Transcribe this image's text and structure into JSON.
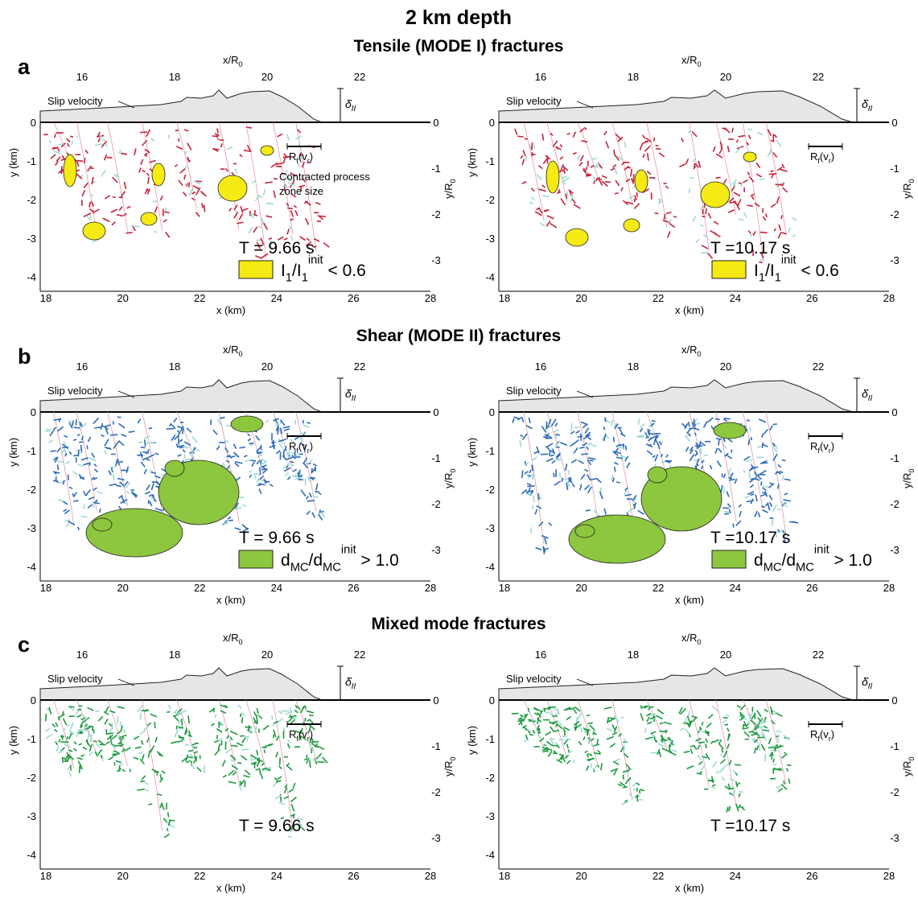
{
  "title": "2 km depth",
  "axes": {
    "x_label": "x (km)",
    "x_ticks": [
      "18",
      "20",
      "22",
      "24",
      "26",
      "28"
    ],
    "x2_label": {
      "t": "x/R",
      "sub": "0"
    },
    "x2_ticks": [
      "16",
      "18",
      "20",
      "22"
    ],
    "y_label": "y (km)",
    "y_ticks": [
      "0",
      "-1",
      "-2",
      "-3",
      "-4"
    ],
    "y2_label": {
      "t": "y/R",
      "sub": "0"
    },
    "y2_ticks": [
      "0",
      "-1",
      "-2",
      "-3"
    ],
    "slip_label": "Slip velocity",
    "delta": {
      "t": "δ̇",
      "sub": "II"
    },
    "rf": [
      {
        "t": "R"
      },
      {
        "sub": "f"
      },
      {
        "t": "(v"
      },
      {
        "sub": "r"
      },
      {
        "t": ")"
      }
    ]
  },
  "annotation": [
    "Contracted process",
    "zone size"
  ],
  "rows": [
    {
      "label": "a",
      "heading": "Tensile (MODE I) fractures",
      "heading_color": "#c8203a",
      "color": "#c8203a",
      "zone_color": "#f5ea14",
      "legend": [
        {
          "t": "I"
        },
        {
          "sub": "1"
        },
        {
          "t": "/I"
        },
        {
          "sub": "1"
        },
        {
          "sup": "init"
        },
        {
          "t": " < 0.6"
        }
      ],
      "panels": [
        {
          "time": "T = 9.66 s"
        },
        {
          "time": "T =10.17 s"
        }
      ]
    },
    {
      "label": "b",
      "heading": "Shear (MODE II) fractures",
      "heading_color": "#2b3990",
      "color": "#2a6ab8",
      "zone_color": "#8dc63f",
      "legend": [
        {
          "t": "d"
        },
        {
          "sub": "MC"
        },
        {
          "t": "/d"
        },
        {
          "sub": "MC"
        },
        {
          "sup": "init"
        },
        {
          "t": " > 1.0"
        }
      ],
      "panels": [
        {
          "time": "T = 9.66 s"
        },
        {
          "time": "T =10.17 s"
        }
      ]
    },
    {
      "label": "c",
      "heading": "Mixed mode fractures",
      "heading_color": "#1a9850",
      "color": "#1a9a3c",
      "panels": [
        {
          "time": "T = 9.66 s"
        },
        {
          "time": "T =10.17 s"
        }
      ]
    }
  ]
}
